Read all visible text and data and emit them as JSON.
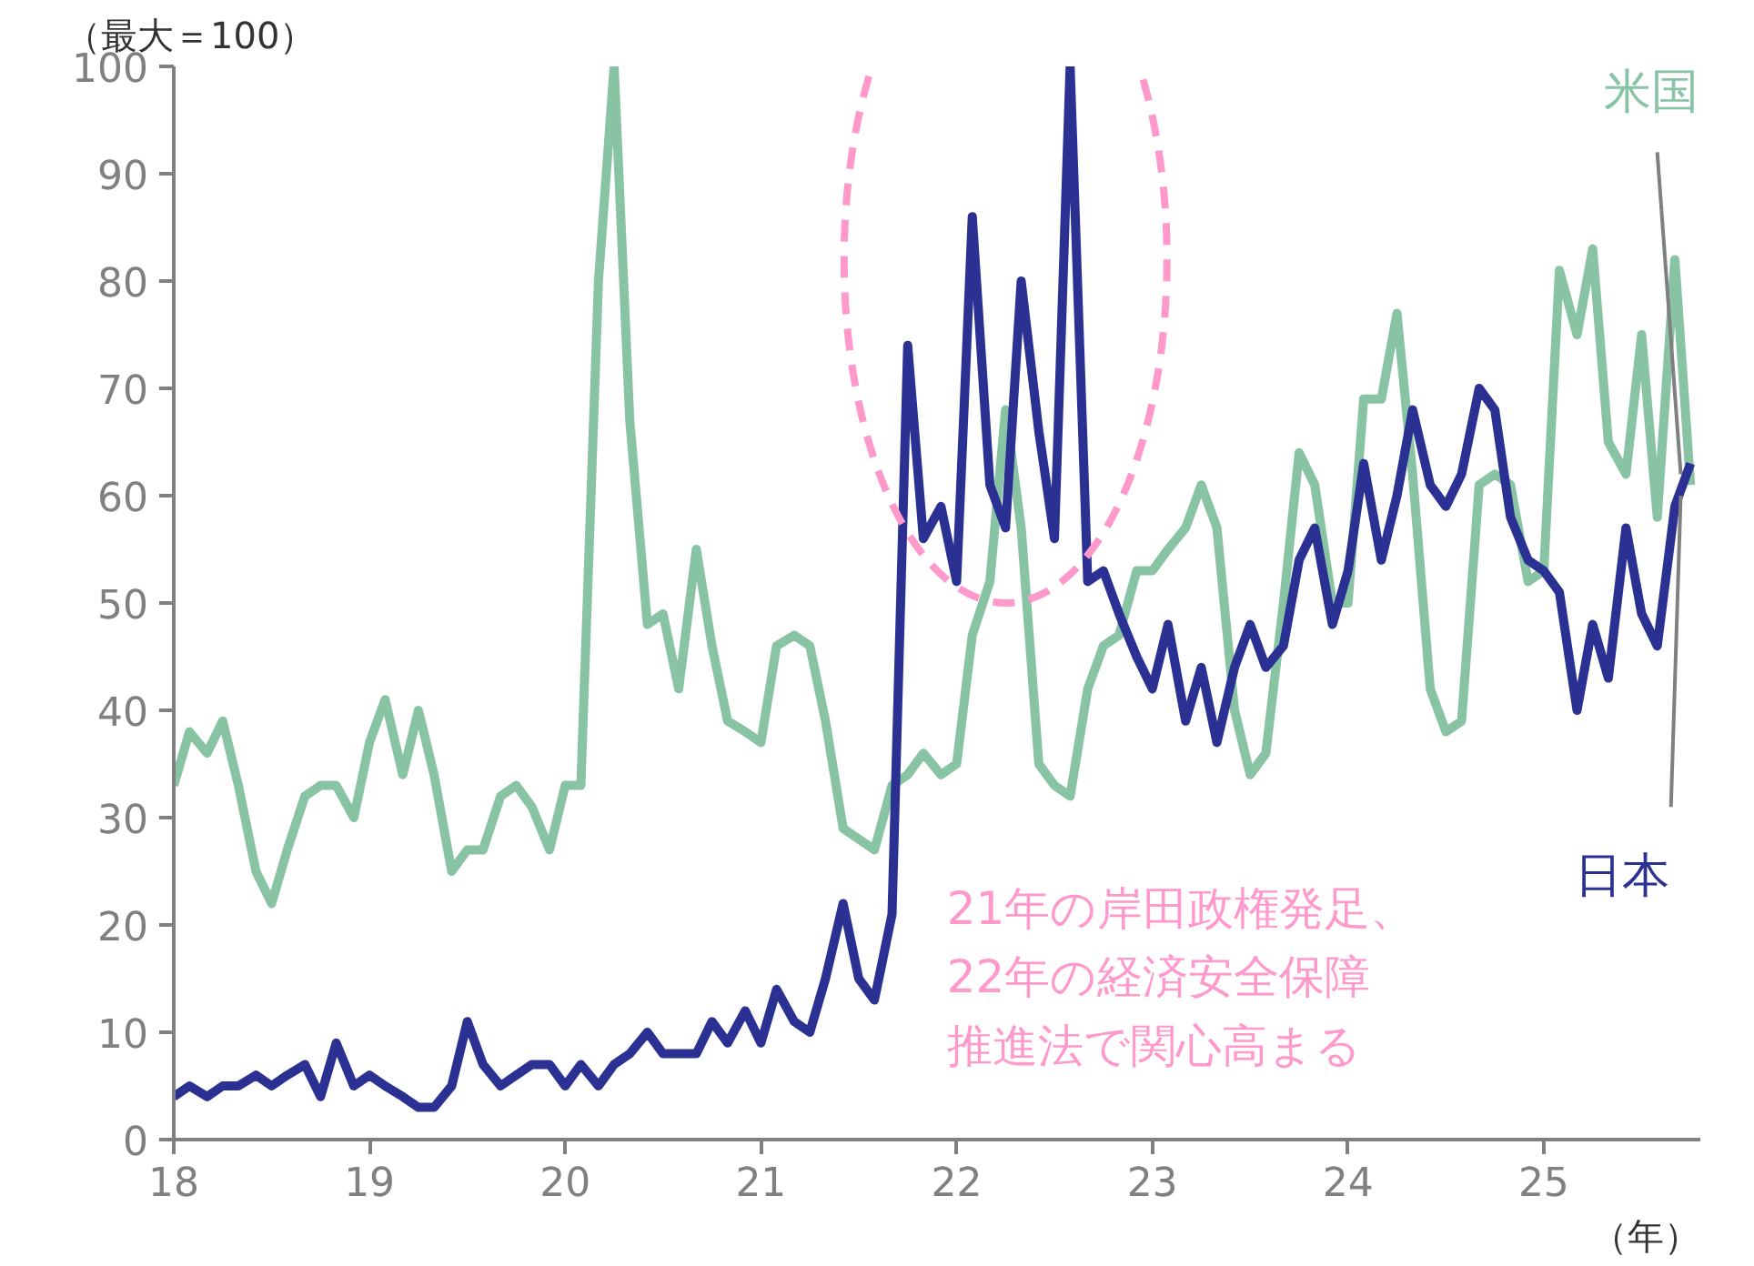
{
  "chart_data": {
    "type": "line",
    "ylabel": "（最大＝100）",
    "xlabel": "（年）",
    "x": [
      18.0,
      18.08,
      18.17,
      18.25,
      18.33,
      18.42,
      18.5,
      18.58,
      18.67,
      18.75,
      18.83,
      18.92,
      19.0,
      19.08,
      19.17,
      19.25,
      19.33,
      19.42,
      19.5,
      19.58,
      19.67,
      19.75,
      19.83,
      19.92,
      20.0,
      20.08,
      20.17,
      20.25,
      20.33,
      20.42,
      20.5,
      20.58,
      20.67,
      20.75,
      20.83,
      20.92,
      21.0,
      21.08,
      21.17,
      21.25,
      21.33,
      21.42,
      21.5,
      21.58,
      21.67,
      21.75,
      21.83,
      21.92,
      22.0,
      22.08,
      22.17,
      22.25,
      22.33,
      22.42,
      22.5,
      22.58,
      22.67,
      22.75,
      22.83,
      22.92,
      23.0,
      23.08,
      23.17,
      23.25,
      23.33,
      23.42,
      23.5,
      23.58,
      23.67,
      23.75,
      23.83,
      23.92,
      24.0,
      24.08,
      24.17,
      24.25,
      24.33,
      24.42,
      24.5,
      24.58,
      24.67,
      24.75,
      24.83,
      24.92,
      25.0,
      25.08,
      25.17,
      25.25,
      25.33,
      25.42,
      25.5,
      25.58,
      25.67,
      25.75
    ],
    "series": [
      {
        "name": "米国",
        "color": "#88c4a4",
        "values": [
          33,
          38,
          36,
          39,
          33,
          25,
          22,
          27,
          32,
          33,
          33,
          30,
          37,
          41,
          34,
          40,
          34,
          25,
          27,
          27,
          32,
          33,
          31,
          27,
          33,
          33,
          80,
          100,
          67,
          48,
          49,
          42,
          55,
          46,
          39,
          38,
          37,
          46,
          47,
          46,
          39,
          29,
          28,
          27,
          33,
          34,
          36,
          34,
          35,
          47,
          52,
          68,
          57,
          35,
          33,
          32,
          42,
          46,
          47,
          53,
          53,
          55,
          57,
          61,
          57,
          40,
          34,
          36,
          50,
          64,
          61,
          50,
          50,
          69,
          69,
          77,
          62,
          42,
          38,
          39,
          61,
          62,
          61,
          52,
          53,
          81,
          75,
          83,
          65,
          62,
          75,
          58,
          82,
          61
        ]
      },
      {
        "name": "日本",
        "color": "#2b3192",
        "values": [
          4,
          5,
          4,
          5,
          5,
          6,
          5,
          6,
          7,
          4,
          9,
          5,
          6,
          5,
          4,
          3,
          3,
          5,
          11,
          7,
          5,
          6,
          7,
          7,
          5,
          7,
          5,
          7,
          8,
          10,
          8,
          8,
          8,
          11,
          9,
          12,
          9,
          14,
          11,
          10,
          15,
          22,
          15,
          13,
          21,
          74,
          56,
          59,
          52,
          86,
          61,
          57,
          80,
          66,
          56,
          100,
          52,
          53,
          49,
          45,
          42,
          48,
          39,
          44,
          37,
          44,
          48,
          44,
          46,
          54,
          57,
          48,
          53,
          63,
          54,
          60,
          68,
          61,
          59,
          62,
          70,
          68,
          58,
          54,
          53,
          51,
          40,
          48,
          43,
          57,
          49,
          46,
          59,
          63
        ]
      }
    ],
    "xlim": [
      18,
      25.8
    ],
    "xticks": [
      18,
      19,
      20,
      21,
      22,
      23,
      24,
      25
    ],
    "ylim": [
      0,
      100
    ],
    "yticks": [
      0,
      10,
      20,
      30,
      40,
      50,
      60,
      70,
      80,
      90,
      100
    ],
    "grid": false,
    "legend": false,
    "line_style": "solid",
    "marker": "none",
    "annotations": [
      "21年の岸田政権発足、22年の経済安全保障推進法で関心高まる"
    ]
  }
}
